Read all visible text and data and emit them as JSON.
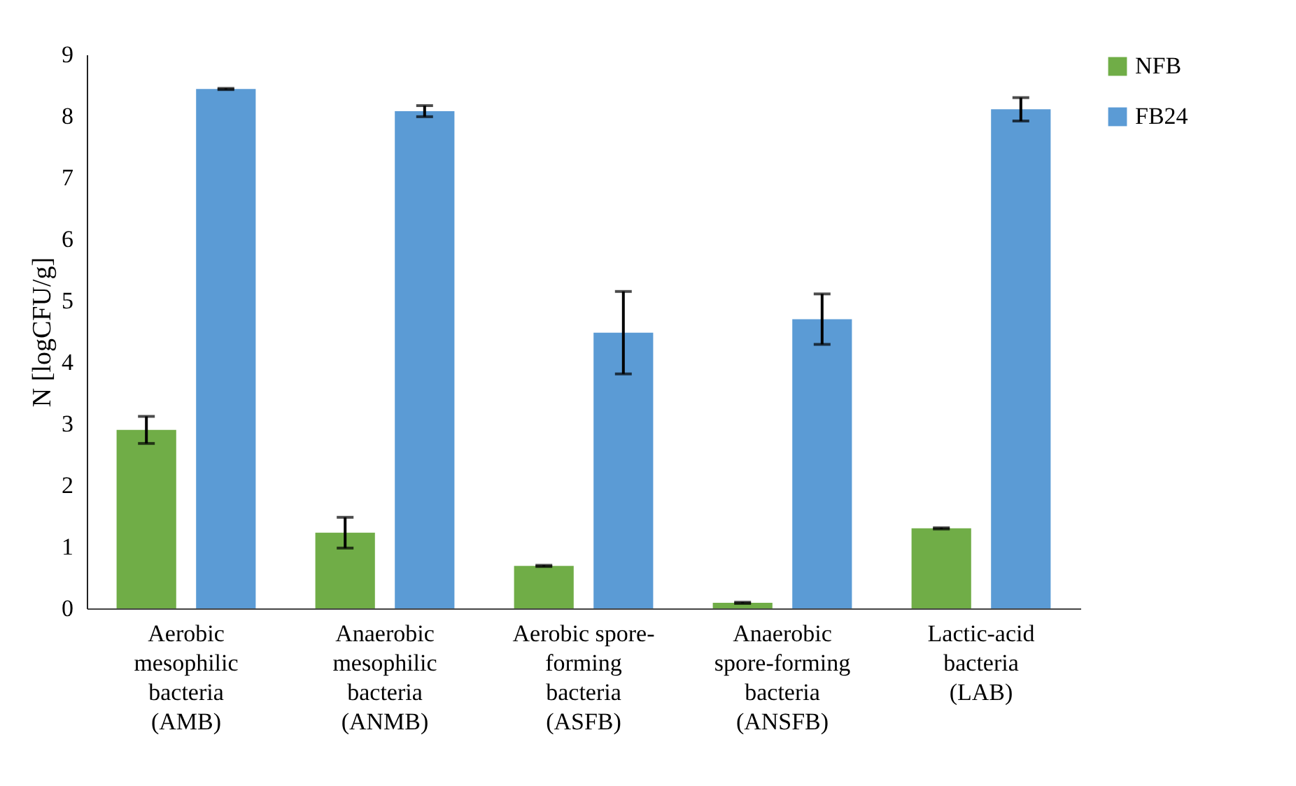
{
  "chart_data": {
    "type": "bar",
    "ylabel": "N [logCFU/g]",
    "categories": [
      "Aerobic\nmesophilic\nbacteria\n(AMB)",
      "Anaerobic\nmesophilic\nbacteria\n(ANMB)",
      "Aerobic spore-\nforming\nbacteria\n(ASFB)",
      "Anaerobic\nspore-forming\nbacteria\n(ANSFB)",
      "Lactic-acid\nbacteria\n(LAB)"
    ],
    "series": [
      {
        "name": "NFB",
        "color": "#70ad47",
        "values": [
          2.9,
          1.23,
          0.69,
          0.09,
          1.3
        ],
        "errors": [
          0.22,
          0.25,
          0.01,
          0.01,
          0.01
        ]
      },
      {
        "name": "FB24",
        "color": "#5b9bd5",
        "values": [
          8.44,
          8.08,
          4.48,
          4.7,
          8.11
        ],
        "errors": [
          0.01,
          0.09,
          0.67,
          0.41,
          0.19
        ]
      }
    ],
    "ylim": [
      0,
      9
    ],
    "yticks": [
      0,
      1,
      2,
      3,
      4,
      5,
      6,
      7,
      8,
      9
    ],
    "grid": false,
    "legend": "right"
  }
}
